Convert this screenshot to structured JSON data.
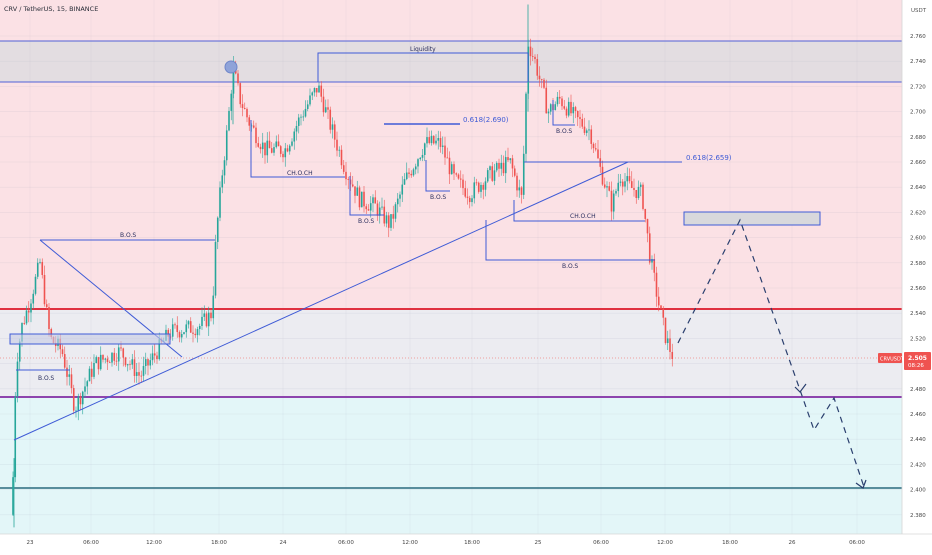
{
  "header": {
    "symbol": "CRV / TetherUS",
    "interval": "15",
    "exchange": "BINANCE"
  },
  "axis": {
    "currency": "USDT",
    "ticks": [
      "2.760",
      "2.740",
      "2.720",
      "2.700",
      "2.680",
      "2.660",
      "2.640",
      "2.620",
      "2.600",
      "2.580",
      "2.560",
      "2.540",
      "2.520",
      "2.500",
      "2.480",
      "2.460",
      "2.440",
      "2.420",
      "2.400",
      "2.380"
    ],
    "time_labels": [
      "23",
      "06:00",
      "12:00",
      "18:00",
      "24",
      "06:00",
      "12:00",
      "18:00",
      "25",
      "06:00",
      "12:00",
      "18:00",
      "26",
      "06:00"
    ]
  },
  "price_badge": {
    "ticker": "CRVUSDT",
    "price": "2.505",
    "countdown": "08:26"
  },
  "annotations": {
    "liquidity": "Liquidity",
    "fib1": "0.618(2.690)",
    "fib2": "0.618(2.659)",
    "bos": "B.O.S",
    "choch": "CH.O.CH"
  },
  "colors": {
    "bull": "#26a69a",
    "bear": "#ef5350",
    "resistance_zone": "#f8c4cb",
    "support_zone": "#d3f1f5",
    "gray_zone": "#dcdcdc",
    "level_red": "#e0303f",
    "level_purple": "#8e44ad",
    "level_teal": "#2b6a7d",
    "drawing_blue": "#3f5bd6",
    "projection": "#2a3f6e"
  },
  "chart_data": {
    "type": "candlestick",
    "symbol": "CRV / TetherUS",
    "interval": "15",
    "exchange": "BINANCE",
    "y_range": [
      2.37,
      2.785
    ],
    "last_price": 2.505,
    "levels": [
      {
        "name": "liquidity-top",
        "price": 2.76
      },
      {
        "name": "liquidity-bottom",
        "price": 2.727
      },
      {
        "name": "red-level",
        "price": 2.543
      },
      {
        "name": "purple-level",
        "price": 2.473
      },
      {
        "name": "teal-level",
        "price": 2.402
      }
    ],
    "projection_path": [
      2.525,
      2.617,
      2.48,
      2.448,
      2.472,
      2.402
    ],
    "fib_levels": [
      2.69,
      2.659
    ]
  }
}
